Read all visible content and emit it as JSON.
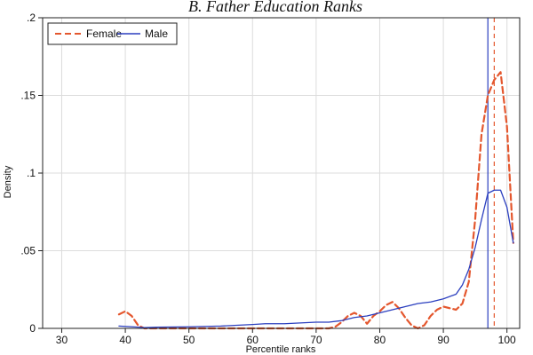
{
  "chart_data": {
    "type": "line",
    "title": "B. Father Education Ranks",
    "xlabel": "Percentile ranks",
    "ylabel": "Density",
    "xlim": [
      27,
      102
    ],
    "ylim": [
      0,
      0.2
    ],
    "xticks": [
      30,
      40,
      50,
      60,
      70,
      80,
      90,
      100
    ],
    "xtick_labels": [
      "30",
      "40",
      "50",
      "60",
      "70",
      "80",
      "90",
      "100"
    ],
    "yticks": [
      0,
      0.05,
      0.1,
      0.15,
      0.2
    ],
    "ytick_labels": [
      "0",
      ".05",
      ".1",
      ".15",
      ".2"
    ],
    "grid": true,
    "legend_position": "top-left",
    "series": [
      {
        "name": "Female",
        "color": "#e4572e",
        "style": "dashed",
        "x": [
          39,
          40,
          41,
          42,
          43,
          45,
          50,
          55,
          60,
          65,
          70,
          72,
          73,
          74,
          75,
          76,
          77,
          78,
          79,
          80,
          81,
          82,
          83,
          84,
          85,
          86,
          87,
          88,
          89,
          90,
          91,
          92,
          93,
          94,
          95,
          96,
          97,
          98,
          99,
          100,
          101
        ],
        "values": [
          0.009,
          0.011,
          0.008,
          0.002,
          0.0,
          0.0,
          0.0,
          0.0,
          0.0,
          0.0,
          0.0,
          0.0,
          0.001,
          0.004,
          0.008,
          0.01,
          0.008,
          0.003,
          0.008,
          0.011,
          0.015,
          0.017,
          0.013,
          0.007,
          0.002,
          0.0,
          0.002,
          0.008,
          0.012,
          0.014,
          0.013,
          0.012,
          0.016,
          0.03,
          0.07,
          0.125,
          0.15,
          0.16,
          0.165,
          0.13,
          0.055
        ]
      },
      {
        "name": "Male",
        "color": "#2b3fbf",
        "style": "solid",
        "x": [
          39,
          42,
          43,
          45,
          50,
          55,
          60,
          62,
          65,
          70,
          72,
          74,
          76,
          78,
          80,
          82,
          84,
          86,
          88,
          90,
          92,
          93,
          94,
          95,
          96,
          97,
          98,
          99,
          100,
          101
        ],
        "values": [
          0.0015,
          0.0008,
          0.0005,
          0.0008,
          0.001,
          0.0015,
          0.0025,
          0.003,
          0.003,
          0.004,
          0.004,
          0.005,
          0.007,
          0.008,
          0.01,
          0.012,
          0.014,
          0.016,
          0.017,
          0.019,
          0.022,
          0.028,
          0.038,
          0.052,
          0.07,
          0.087,
          0.089,
          0.089,
          0.078,
          0.055
        ]
      }
    ],
    "vlines": [
      {
        "series": "Male",
        "x": 97,
        "color": "#2b3fbf",
        "style": "solid"
      },
      {
        "series": "Female",
        "x": 98,
        "color": "#e4572e",
        "style": "dashed"
      }
    ]
  }
}
